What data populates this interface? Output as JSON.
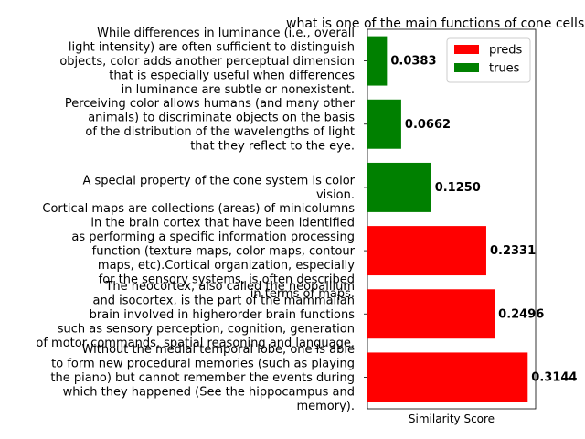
{
  "chart_data": {
    "type": "bar",
    "orientation": "horizontal",
    "title": "what is one of the main functions of cone cells?",
    "xlabel": "Similarity Score",
    "ylabel": "",
    "xlim": [
      0,
      0.33
    ],
    "grid": false,
    "legend_position": "top-right",
    "legend": [
      {
        "name": "preds",
        "color": "#ff0000"
      },
      {
        "name": "trues",
        "color": "#008000"
      }
    ],
    "bars": [
      {
        "category": "Without the medial temporal lobe, one is able to form new procedural memories (such as playing the piano) but cannot remember the events during which they happened (See the hippocampus and memory).",
        "lines": [
          "Without the medial temporal lobe, one is able",
          "to form new procedural memories (such as playing",
          "the piano) but cannot remember the events during",
          "which they happened (See the hippocampus and",
          "memory)."
        ],
        "value": 0.3144,
        "label": "0.3144",
        "group": "preds",
        "color": "#ff0000"
      },
      {
        "category": "The neocortex, also called the neopallium and isocortex, is the part of the mammalian brain involved in higherorder brain functions such as sensory perception, cognition, generation of motor commands, spatial reasoning and language.",
        "lines": [
          "The neocortex, also called the neopallium",
          "and isocortex, is the part of the mammalian",
          "brain involved in higherorder brain functions",
          "such as sensory perception, cognition, generation",
          "of motor commands, spatial reasoning and language."
        ],
        "value": 0.2496,
        "label": "0.2496",
        "group": "preds",
        "color": "#ff0000"
      },
      {
        "category": "Cortical maps are collections (areas) of minicolumns in the brain cortex that have been identified as performing a specific information processing function (texture maps, color maps, contour maps, etc).Cortical organization, especially for the sensory systems, is often described in terms of maps.",
        "lines": [
          "Cortical maps are collections (areas) of minicolumns",
          "in the brain cortex that have been identified",
          "as performing a specific information processing",
          "function (texture maps, color maps, contour",
          "maps, etc).Cortical organization, especially",
          "for the sensory systems, is often described",
          "in terms of maps."
        ],
        "value": 0.2331,
        "label": "0.2331",
        "group": "preds",
        "color": "#ff0000"
      },
      {
        "category": "A special property of the cone system is color vision.",
        "lines": [
          "A special property of the cone system is color",
          "vision."
        ],
        "value": 0.125,
        "label": "0.1250",
        "group": "trues",
        "color": "#008000"
      },
      {
        "category": "Perceiving color allows humans (and many other animals) to discriminate objects on the basis of the distribution of the wavelengths of light that they reflect to the eye.",
        "lines": [
          "Perceiving color allows humans (and many other",
          "animals) to discriminate objects on the basis",
          "of the distribution of the wavelengths of light",
          "that they reflect to the eye."
        ],
        "value": 0.0662,
        "label": "0.0662",
        "group": "trues",
        "color": "#008000"
      },
      {
        "category": "While differences in luminance (i.e., overall light intensity) are often sufficient to distinguish objects, color adds another perceptual dimension that is especially useful when differences in luminance are subtle or nonexistent.",
        "lines": [
          "While differences in luminance (i.e., overall",
          "light intensity) are often sufficient to distinguish",
          "objects, color adds another perceptual dimension",
          "that is especially useful when differences",
          "in luminance are subtle or nonexistent."
        ],
        "value": 0.0383,
        "label": "0.0383",
        "group": "trues",
        "color": "#008000"
      }
    ]
  }
}
